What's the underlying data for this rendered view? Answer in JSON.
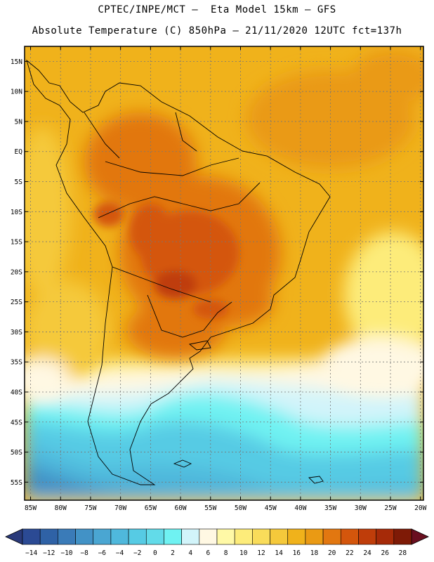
{
  "header": {
    "line1": "CPTEC/INPE/MCT –  Eta Model 15km – GFS",
    "line2": "Absolute Temperature (C) 850hPa – 21/11/2020 12UTC fct=137h"
  },
  "axes": {
    "lat_labels": [
      "15N",
      "10N",
      "5N",
      "EQ",
      "5S",
      "10S",
      "15S",
      "20S",
      "25S",
      "30S",
      "35S",
      "40S",
      "45S",
      "50S",
      "55S"
    ],
    "lat_values": [
      15,
      10,
      5,
      0,
      -5,
      -10,
      -15,
      -20,
      -25,
      -30,
      -35,
      -40,
      -45,
      -50,
      -55
    ],
    "lon_labels": [
      "85W",
      "80W",
      "75W",
      "70W",
      "65W",
      "60W",
      "55W",
      "50W",
      "45W",
      "40W",
      "35W",
      "30W",
      "25W",
      "20W"
    ],
    "lon_values": [
      -85,
      -80,
      -75,
      -70,
      -65,
      -60,
      -55,
      -50,
      -45,
      -40,
      -35,
      -30,
      -25,
      -20
    ],
    "lat_range": [
      -58,
      17.5
    ],
    "lon_range": [
      -86,
      -19.5
    ]
  },
  "colorbar": {
    "labels": [
      "-14",
      "-12",
      "-10",
      "-8",
      "-6",
      "-4",
      "-2",
      "0",
      "2",
      "4",
      "6",
      "8",
      "10",
      "12",
      "14",
      "16",
      "18",
      "20",
      "22",
      "24",
      "26",
      "28"
    ],
    "colors": [
      "#2b4a94",
      "#2f62a6",
      "#3a7bb8",
      "#4292c6",
      "#4aa6d2",
      "#4fb8dc",
      "#56cbe4",
      "#62dbe9",
      "#6ff2f2",
      "#d2f4fa",
      "#fff8e3",
      "#fff9a6",
      "#fdec7a",
      "#f9dc5a",
      "#f5c93b",
      "#f0b21b",
      "#ea9a14",
      "#e27710",
      "#d4560c",
      "#bf3d0a",
      "#a62a08",
      "#7e1a06"
    ],
    "under_color": "#2a3a7a",
    "over_color": "#6a0f20"
  }
}
